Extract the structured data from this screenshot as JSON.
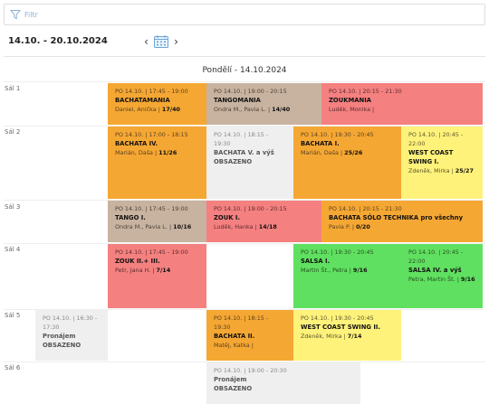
{
  "filter": {
    "label": "Filtr"
  },
  "header": {
    "date_range": "14.10. - 20.10.2024",
    "prev": "‹",
    "next": "›"
  },
  "day": {
    "title": "Pondělí - 14.10.2024"
  },
  "rooms": [
    "Sál 1",
    "Sál 2",
    "Sál 3",
    "Sál 4",
    "Sál 5",
    "Sál 6"
  ],
  "events": [
    {
      "time": "PO 14.10. | 17:45 - 19:00",
      "title": "BACHATAMANIA",
      "people": "Daniel, Anička",
      "count": "17/40",
      "color": "orange"
    },
    {
      "time": "PO 14.10. | 19:00 - 20:15",
      "title": "TANGOMANIA",
      "people": "Ondra M., Pavla L.",
      "count": "14/40",
      "color": "taupe"
    },
    {
      "time": "PO 14.10. | 20:15 - 21:30",
      "title": "ZOUKMANIA",
      "people": "Luděk, Monika",
      "count": "",
      "color": "red"
    },
    {
      "time": "PO 14.10. | 17:00 - 18:15",
      "title": "BACHATA IV.",
      "people": "Marián, Daša",
      "count": "11/26",
      "color": "orange"
    },
    {
      "time": "PO 14.10. | 18:15 - 19:30",
      "title": "BACHATA V. a výš",
      "status": "OBSAZENO",
      "color": "grey"
    },
    {
      "time": "PO 14.10. | 19:30 - 20:45",
      "title": "BACHATA I.",
      "people": "Marián, Daša",
      "count": "25/26",
      "color": "orange"
    },
    {
      "time": "PO 14.10. | 20:45 - 22:00",
      "title": "WEST COAST SWING I.",
      "people": "Zdeněk, Mirka",
      "count": "25/27",
      "color": "yellow"
    },
    {
      "time": "PO 14.10. | 17:45 - 19:00",
      "title": "TANGO I.",
      "people": "Ondra M., Pavla L.",
      "count": "10/16",
      "color": "taupe"
    },
    {
      "time": "PO 14.10. | 19:00 - 20:15",
      "title": "ZOUK I.",
      "people": "Luděk, Hanka",
      "count": "14/18",
      "color": "red"
    },
    {
      "time": "PO 14.10. | 20:15 - 21:30",
      "title": "BACHATA SÓLO TECHNIKA pro všechny",
      "people": "Pavla P.",
      "count": "0/20",
      "color": "orange"
    },
    {
      "time": "PO 14.10. | 17:45 - 19:00",
      "title": "ZOUK II.+ III.",
      "people": "Petr, Jana H.",
      "count": "7/14",
      "color": "red"
    },
    {
      "time": "PO 14.10. | 19:30 - 20:45",
      "title": "SALSA I.",
      "people": "Martin Št., Petra",
      "count": "9/16",
      "color": "green"
    },
    {
      "time": "PO 14.10. | 20:45 - 22:00",
      "title": "SALSA IV. a výš",
      "people": "Petra, Martin Št.",
      "count": "9/16",
      "color": "green"
    },
    {
      "time": "PO 14.10. | 16:30 - 17:30",
      "title": "Pronájem",
      "status": "OBSAZENO",
      "color": "grey"
    },
    {
      "time": "PO 14.10. | 18:15 - 19:30",
      "title": "BACHATA II.",
      "people": "Matěj, Katka",
      "count": "",
      "color": "orange"
    },
    {
      "time": "PO 14.10. | 19:30 - 20:45",
      "title": "WEST COAST SWING II.",
      "people": "Zdeněk, Mirka",
      "count": "7/14",
      "color": "yellow"
    },
    {
      "time": "PO 14.10. | 19:00 - 20:30",
      "title": "Pronájem",
      "status": "OBSAZENO",
      "color": "grey"
    }
  ]
}
